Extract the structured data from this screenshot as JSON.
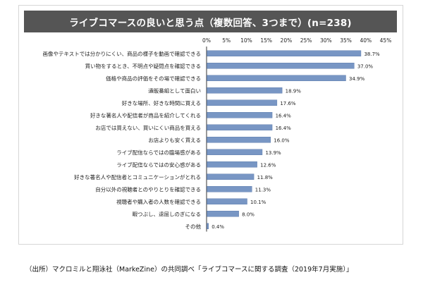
{
  "title": "ライブコマースの良いと思う点（複数回答、3つまで）(n=238)",
  "footer": "（出所）マクロミルと翔泳社（MarkeZine）の共同調べ「ライブコマースに関する調査（2019年7月実施）」",
  "colors": {
    "bar": "#7896c4",
    "bar_edge": "#6482b0",
    "title_bg": "#555555",
    "axis": "#333333"
  },
  "chart_data": {
    "type": "bar",
    "orientation": "horizontal",
    "title": "ライブコマースの良いと思う点（複数回答、3つまで）(n=238)",
    "xlim": [
      0,
      45
    ],
    "x_ticks": [
      "0%",
      "5%",
      "10%",
      "15%",
      "20%",
      "25%",
      "30%",
      "35%",
      "40%",
      "45%"
    ],
    "tick_step": 5,
    "grid": false,
    "legend": "none",
    "categories": [
      "画像やテキストでは分かりにくい、商品の様子を動画で確認できる",
      "買い物をするとき、不明点や疑問点を確認できる",
      "価格や商品の評価をその場で確認できる",
      "通販番組として面白い",
      "好きな場所、好きな時間に買える",
      "好きな著名人や配信者が商品を紹介してくれる",
      "お店では買えない、買いにくい商品を買える",
      "お店よりも安く買える",
      "ライブ配信ならではの臨場感がある",
      "ライブ配信ならではの安心感がある",
      "好きな著名人や配信者とコミュニケーションがとれる",
      "自分以外の視聴者とのやりとりを確認できる",
      "視聴者や購入者の人数を確認できる",
      "暇つぶし、退屈しのぎになる",
      "その他"
    ],
    "values": [
      38.7,
      37.0,
      34.9,
      18.9,
      17.6,
      16.4,
      16.4,
      16.0,
      13.9,
      12.6,
      11.8,
      11.3,
      10.1,
      8.0,
      0.4
    ],
    "value_labels": [
      "38.7%",
      "37.0%",
      "34.9%",
      "18.9%",
      "17.6%",
      "16.4%",
      "16.4%",
      "16.0%",
      "13.9%",
      "12.6%",
      "11.8%",
      "11.3%",
      "10.1%",
      "8.0%",
      "0.4%"
    ]
  }
}
